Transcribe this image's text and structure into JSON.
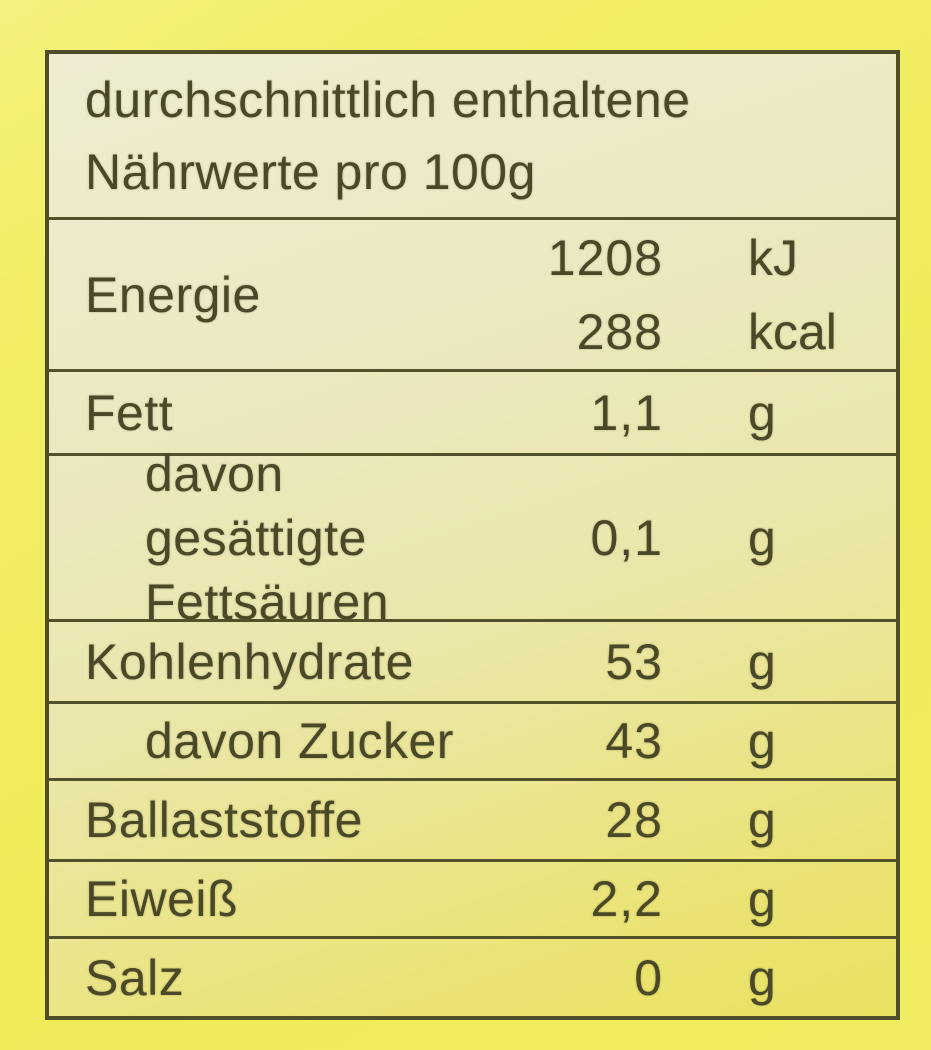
{
  "colors": {
    "label_background": "#efeb58",
    "cell_background": "#ece9c2",
    "line_and_text": "#4f4d28"
  },
  "table": {
    "header": "durchschnittlich enthaltene Nährwerte pro 100g",
    "energy_row": {
      "label": "Energie",
      "lines": [
        {
          "value": "1208",
          "unit": "kJ"
        },
        {
          "value": "288",
          "unit": "kcal"
        }
      ]
    },
    "rows": [
      {
        "label": "Fett",
        "value": "1,1",
        "unit": "g",
        "indent": false
      },
      {
        "label": "davon gesättigte Fettsäuren",
        "value": "0,1",
        "unit": "g",
        "indent": true
      },
      {
        "label": "Kohlenhydrate",
        "value": "53",
        "unit": "g",
        "indent": false
      },
      {
        "label": "davon Zucker",
        "value": "43",
        "unit": "g",
        "indent": true
      },
      {
        "label": "Ballaststoffe",
        "value": "28",
        "unit": "g",
        "indent": false
      },
      {
        "label": "Eiweiß",
        "value": "2,2",
        "unit": "g",
        "indent": false
      },
      {
        "label": "Salz",
        "value": "0",
        "unit": "g",
        "indent": false
      }
    ]
  }
}
